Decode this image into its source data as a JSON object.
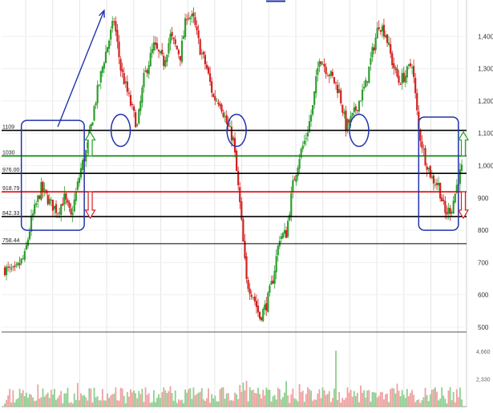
{
  "chart_data": {
    "type": "candlestick",
    "title": "",
    "xlabel": "",
    "ylabel": "",
    "ylim": [
      490,
      1500
    ],
    "y_ticks": [
      "1,400",
      "1,300",
      "1,200",
      "1,100",
      "1,000",
      "900",
      "800",
      "700",
      "600",
      "500"
    ],
    "y_tick_values": [
      1400,
      1300,
      1200,
      1100,
      1000,
      900,
      800,
      700,
      600,
      500
    ],
    "levels": [
      {
        "label": "1109",
        "value": 1109,
        "color": "#000000"
      },
      {
        "label": "1030",
        "value": 1030,
        "color": "#008000"
      },
      {
        "label": "976.00",
        "value": 976,
        "color": "#000000"
      },
      {
        "label": "918.79",
        "value": 918.79,
        "color": "#e00000"
      },
      {
        "label": "842.33",
        "value": 842.33,
        "color": "#000000"
      },
      {
        "label": "758.44",
        "value": 758.44,
        "color": "#000000"
      }
    ],
    "price_path": [
      [
        0,
        680
      ],
      [
        3,
        670
      ],
      [
        6,
        720
      ],
      [
        8,
        830
      ],
      [
        11,
        930
      ],
      [
        14,
        880
      ],
      [
        16,
        860
      ],
      [
        18,
        900
      ],
      [
        20,
        840
      ],
      [
        23,
        990
      ],
      [
        25,
        1060
      ],
      [
        27,
        1180
      ],
      [
        30,
        1330
      ],
      [
        33,
        1450
      ],
      [
        35,
        1300
      ],
      [
        38,
        1190
      ],
      [
        40,
        1120
      ],
      [
        42,
        1270
      ],
      [
        45,
        1370
      ],
      [
        48,
        1320
      ],
      [
        50,
        1400
      ],
      [
        53,
        1340
      ],
      [
        55,
        1470
      ],
      [
        57,
        1450
      ],
      [
        59,
        1360
      ],
      [
        61,
        1300
      ],
      [
        63,
        1210
      ],
      [
        65,
        1200
      ],
      [
        67,
        1130
      ],
      [
        69,
        1080
      ],
      [
        71,
        880
      ],
      [
        73,
        640
      ],
      [
        75,
        600
      ],
      [
        77,
        530
      ],
      [
        79,
        570
      ],
      [
        81,
        650
      ],
      [
        83,
        780
      ],
      [
        85,
        790
      ],
      [
        87,
        940
      ],
      [
        89,
        1030
      ],
      [
        91,
        1090
      ],
      [
        93,
        1180
      ],
      [
        95,
        1340
      ],
      [
        97,
        1300
      ],
      [
        99,
        1270
      ],
      [
        101,
        1230
      ],
      [
        103,
        1120
      ],
      [
        105,
        1150
      ],
      [
        107,
        1200
      ],
      [
        109,
        1250
      ],
      [
        111,
        1350
      ],
      [
        113,
        1440
      ],
      [
        115,
        1410
      ],
      [
        117,
        1320
      ],
      [
        119,
        1260
      ],
      [
        121,
        1280
      ],
      [
        123,
        1320
      ],
      [
        125,
        1110
      ],
      [
        127,
        1020
      ],
      [
        129,
        960
      ],
      [
        131,
        940
      ],
      [
        133,
        850
      ],
      [
        135,
        870
      ],
      [
        137,
        960
      ],
      [
        138,
        990
      ]
    ],
    "volume_ticks": [
      "4,660",
      "2,330"
    ],
    "volume_tick_values": [
      4660,
      2330
    ],
    "volume_max": 6000,
    "volume_spike_index": 100,
    "volume_spike_value": 4700,
    "annotations": [
      {
        "type": "box",
        "label": "consolidation-range",
        "from_x": 5,
        "to_x": 24,
        "y_top": 1140,
        "y_bottom": 800
      },
      {
        "type": "box",
        "label": "current-range",
        "from_x": 125,
        "to_x": 137,
        "y_top": 1150,
        "y_bottom": 800
      },
      {
        "type": "circle",
        "label": "retest-1",
        "x": 35,
        "y": 1109
      },
      {
        "type": "circle",
        "label": "retest-2",
        "x": 70,
        "y": 1109
      },
      {
        "type": "circle",
        "label": "retest-3",
        "x": 107,
        "y": 1109
      },
      {
        "type": "arrow",
        "label": "breakout-trend-arrow",
        "from": [
          16,
          1120
        ],
        "to": [
          30,
          1480
        ]
      }
    ],
    "grid": true,
    "legend": "none"
  }
}
